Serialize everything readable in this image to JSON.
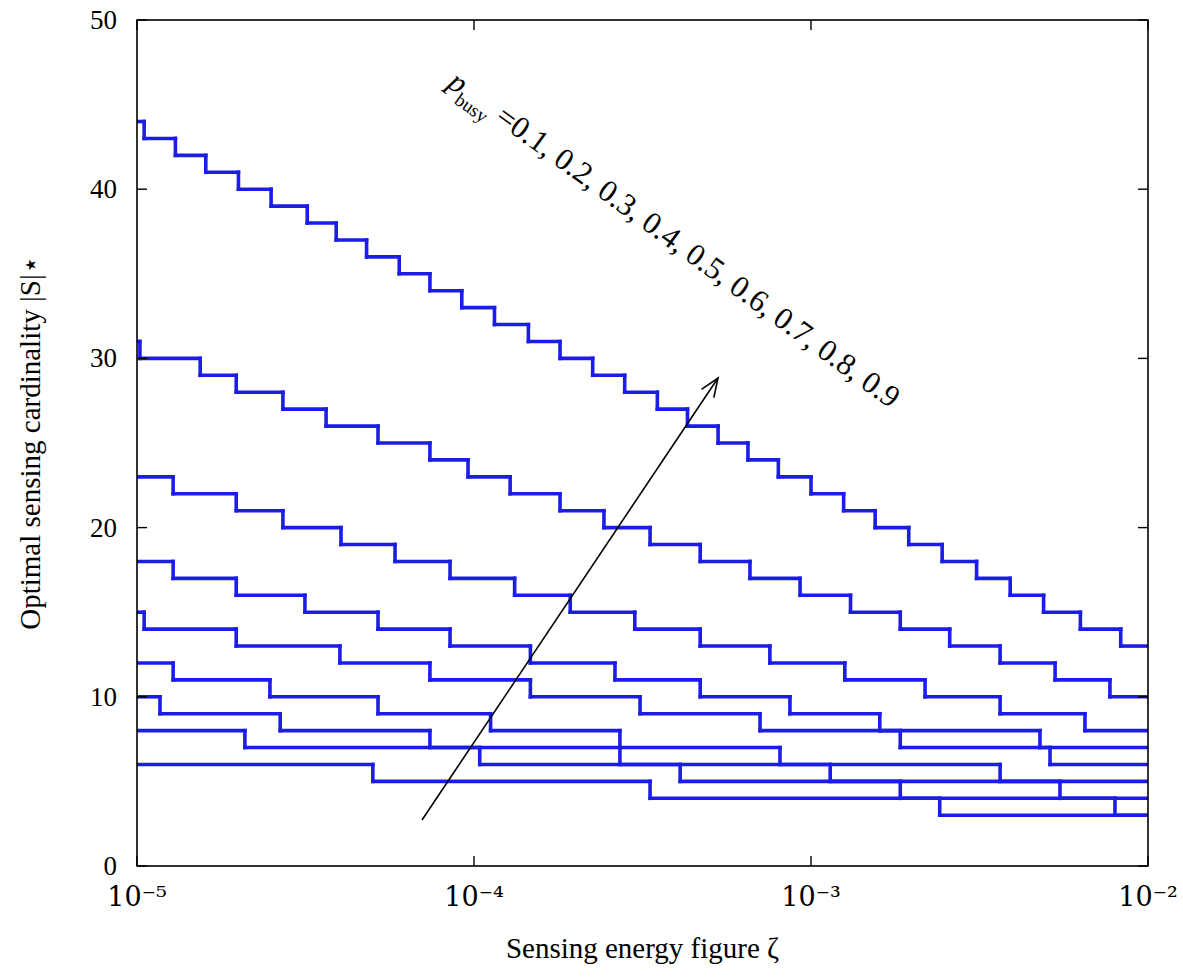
{
  "chart_data": {
    "type": "line",
    "line_style": "step",
    "xlabel": "Sensing energy figure ζ",
    "ylabel": "Optimal sensing cardinality |S|⋆",
    "annotation": {
      "text": "p",
      "subscript": "busy",
      "suffix": " =0.1, 0.2, 0.3, 0.4, 0.5, 0.6, 0.7, 0.8, 0.9"
    },
    "log": "x",
    "grid": false,
    "xlim": [
      1e-05,
      0.01
    ],
    "xticks": [
      {
        "value": 1e-05,
        "label": "10⁻⁵"
      },
      {
        "value": 0.0001,
        "label": "10⁻⁴"
      },
      {
        "value": 0.001,
        "label": "10⁻³"
      },
      {
        "value": 0.01,
        "label": "10⁻²"
      }
    ],
    "ylim": [
      0,
      50
    ],
    "yticks": [
      0,
      10,
      20,
      30,
      40,
      50
    ],
    "series": [
      {
        "color": "#1c1ce8",
        "x": [
          1e-05,
          1.05e-05,
          1.3e-05,
          1.6e-05,
          2e-05,
          2.5e-05,
          3.2e-05,
          3.9e-05,
          4.8e-05,
          6e-05,
          7.4e-05,
          9.2e-05,
          0.000115,
          0.000145,
          0.00018,
          0.000225,
          0.00028,
          0.00035,
          0.00043,
          0.00053,
          0.00065,
          0.0008,
          0.001,
          0.00125,
          0.00155,
          0.00195,
          0.00245,
          0.0031,
          0.0039,
          0.0049,
          0.0063,
          0.0083
        ],
        "values": [
          44,
          43,
          42,
          41,
          40,
          39,
          38,
          37,
          36,
          35,
          34,
          33,
          32,
          31,
          30,
          29,
          28,
          27,
          26,
          25,
          24,
          23,
          22,
          21,
          20,
          19,
          18,
          17,
          16,
          15,
          14,
          13
        ]
      },
      {
        "color": "#1c1ce8",
        "x": [
          1e-05,
          1.02e-05,
          1.54e-05,
          1.97e-05,
          2.71e-05,
          3.64e-05,
          5.19e-05,
          7.4e-05,
          9.6e-05,
          0.000128,
          0.00018,
          0.000243,
          0.000333,
          0.000469,
          0.000659,
          0.000928,
          0.00131,
          0.00184,
          0.00258,
          0.00364,
          0.0053,
          0.00771
        ],
        "values": [
          31,
          30,
          29,
          28,
          27,
          26,
          25,
          24,
          23,
          22,
          21,
          20,
          19,
          18,
          17,
          16,
          15,
          14,
          13,
          12,
          11,
          10
        ]
      },
      {
        "color": "#1c1ce8",
        "x": [
          1e-05,
          1.28e-05,
          1.97e-05,
          2.71e-05,
          4.03e-05,
          5.83e-05,
          8.49e-05,
          0.000132,
          0.000193,
          0.0003,
          0.000469,
          0.000755,
          0.00126,
          0.00218,
          0.00364,
          0.0065
        ],
        "values": [
          23,
          22,
          21,
          20,
          19,
          18,
          17,
          16,
          15,
          14,
          13,
          12,
          11,
          10,
          9,
          8
        ]
      },
      {
        "color": "#1c1ce8",
        "x": [
          1e-05,
          1.28e-05,
          1.97e-05,
          3.15e-05,
          5.19e-05,
          8.49e-05,
          0.000147,
          0.000262,
          0.000469,
          0.000866,
          0.0016,
          0.00478
        ],
        "values": [
          18,
          17,
          16,
          15,
          14,
          13,
          12,
          11,
          10,
          9,
          8,
          7
        ]
      },
      {
        "color": "#1c1ce8",
        "x": [
          1e-05,
          1.05e-05,
          1.97e-05,
          4e-05,
          7.4e-05,
          0.000147,
          0.000311,
          0.000706,
          0.00184,
          0.00512
        ],
        "values": [
          15,
          14,
          13,
          12,
          11,
          10,
          9,
          8,
          7,
          6
        ]
      },
      {
        "color": "#1c1ce8",
        "x": [
          1e-05,
          1.28e-05,
          2.48e-05,
          5.19e-05,
          0.000112,
          0.000271,
          0.000809,
          0.00364
        ],
        "values": [
          12,
          11,
          10,
          9,
          8,
          7,
          6,
          5
        ]
      },
      {
        "color": "#1c1ce8",
        "x": [
          1e-05,
          1.17e-05,
          2.66e-05,
          7.4e-05,
          0.000271,
          0.00114,
          0.00548
        ],
        "values": [
          10,
          9,
          8,
          7,
          6,
          5,
          4
        ]
      },
      {
        "color": "#1c1ce8",
        "x": [
          1e-05,
          2.09e-05,
          0.000104,
          0.000409,
          0.00184,
          0.00798
        ],
        "values": [
          8,
          7,
          6,
          5,
          4,
          3
        ]
      },
      {
        "color": "#1c1ce8",
        "x": [
          1e-05,
          5.01e-05,
          0.000333,
          0.00241
        ],
        "values": [
          6,
          5,
          4,
          3
        ]
      }
    ]
  }
}
